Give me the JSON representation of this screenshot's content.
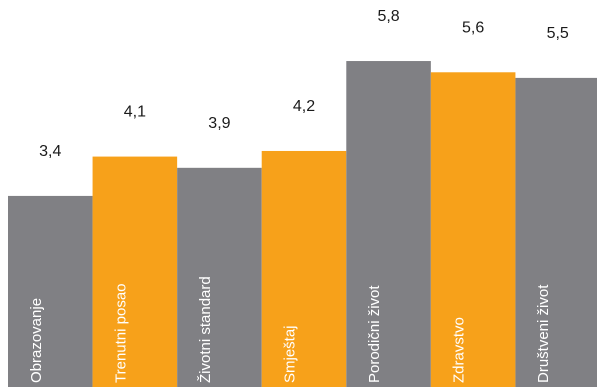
{
  "chart_data": {
    "type": "bar",
    "categories": [
      "Obrazovanje",
      "Trenutni posao",
      "Životni standard",
      "Smještaj",
      "Porodični život",
      "Zdravstvo",
      "Društveni život"
    ],
    "values": [
      3.4,
      4.1,
      3.9,
      4.2,
      5.8,
      5.6,
      5.5
    ],
    "value_labels": [
      "3,4",
      "4,1",
      "3,9",
      "4,2",
      "5,8",
      "5,6",
      "5,5"
    ],
    "bar_colors": [
      "#808084",
      "#f7a11a",
      "#808084",
      "#f7a11a",
      "#808084",
      "#f7a11a",
      "#808084"
    ],
    "label_color": "#ffffff",
    "value_label_color": "#1a1a1a",
    "title": "",
    "xlabel": "",
    "ylabel": "",
    "ylim": [
      0,
      5.8
    ],
    "grid": false,
    "legend": "none"
  }
}
